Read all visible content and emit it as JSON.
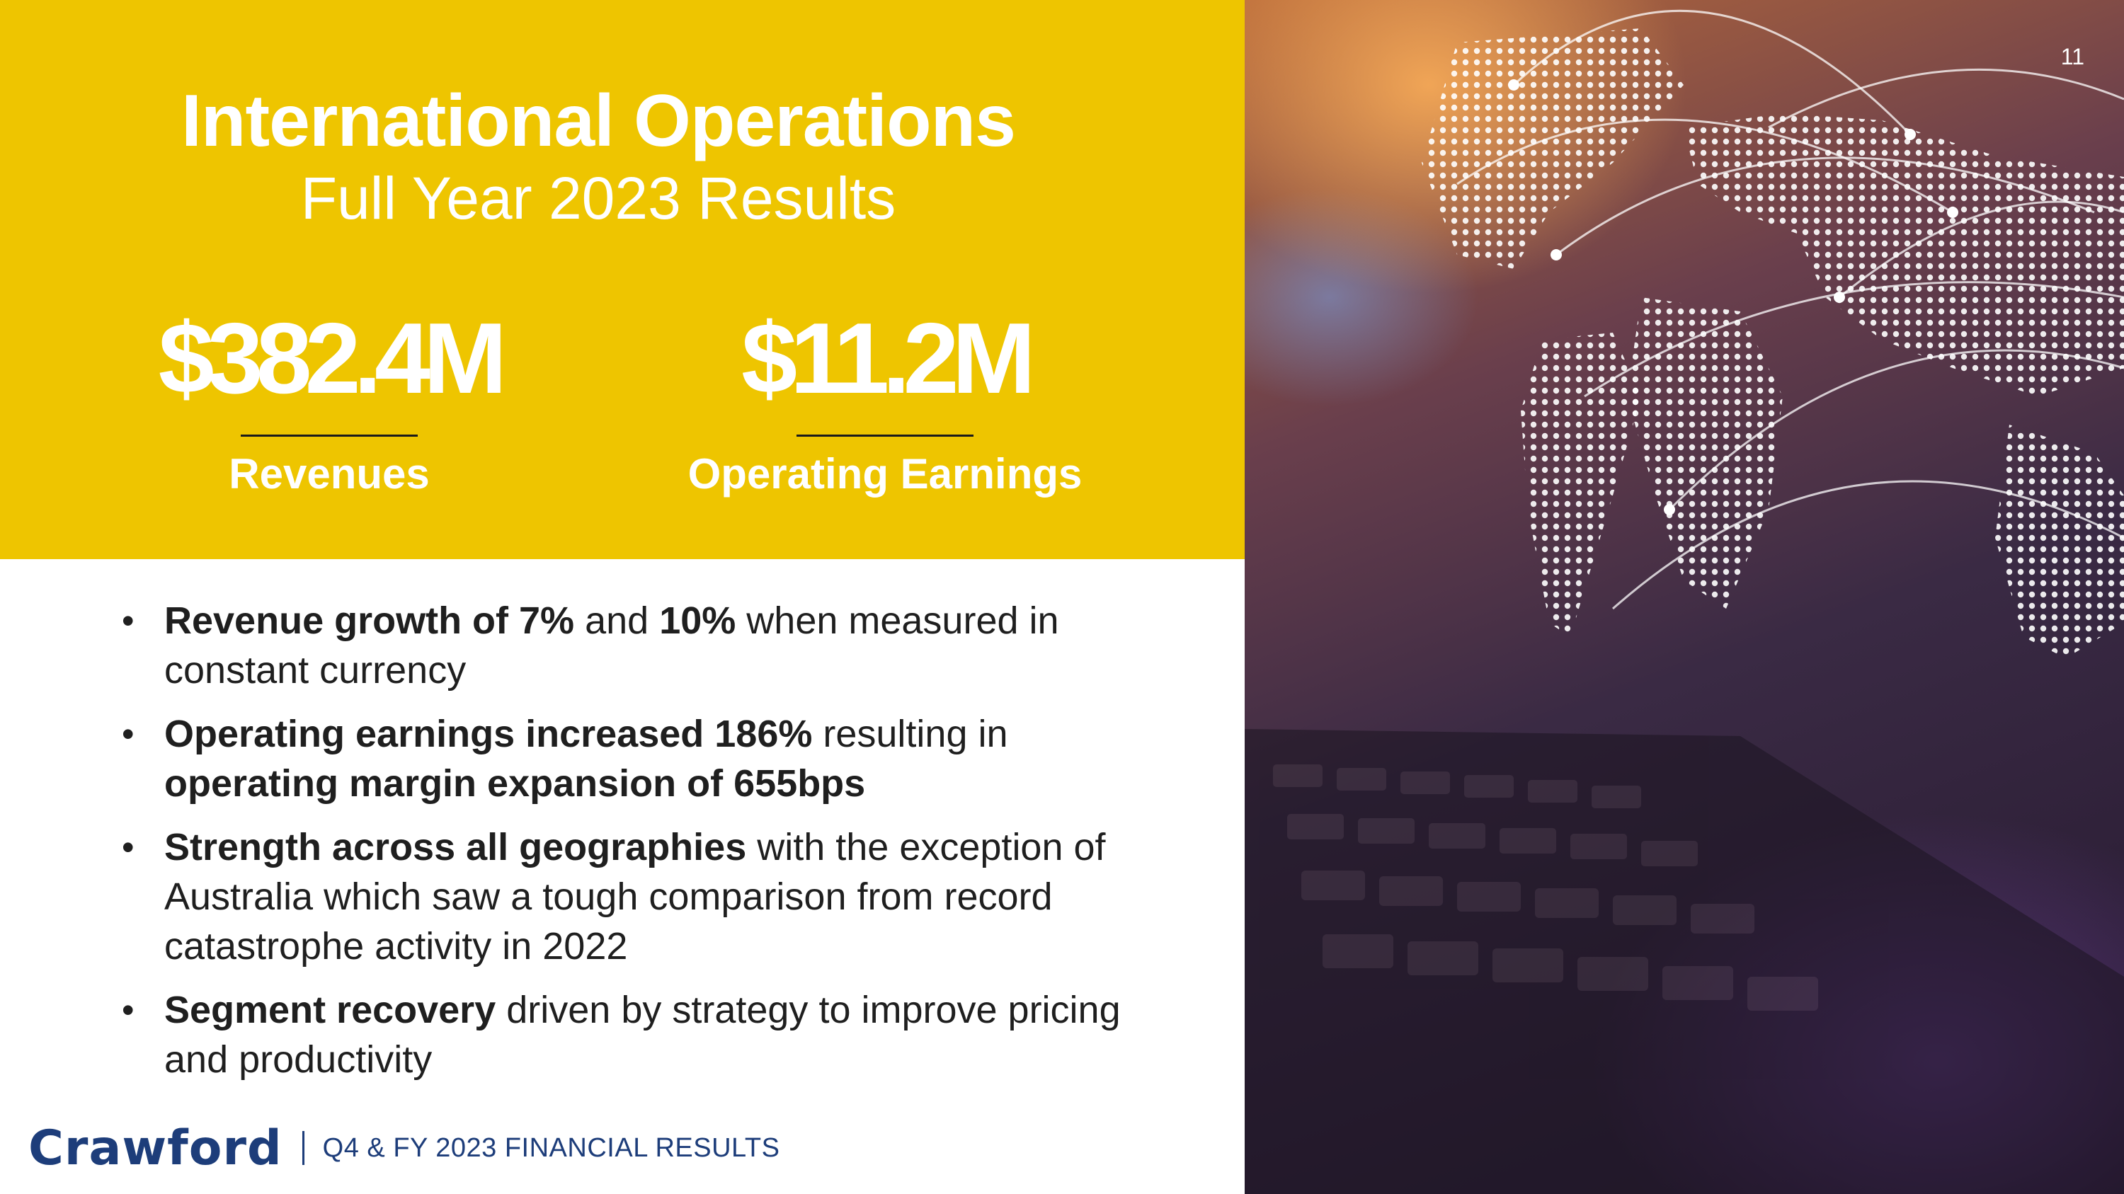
{
  "page_number": "11",
  "header": {
    "title": "International Operations",
    "subtitle": "Full Year 2023 Results"
  },
  "metrics": [
    {
      "value": "$382.4M",
      "label": "Revenues"
    },
    {
      "value": "$11.2M",
      "label": "Operating Earnings"
    }
  ],
  "bullets": [
    [
      {
        "text": "Revenue growth of 7%",
        "bold": true
      },
      {
        "text": " and ",
        "bold": false
      },
      {
        "text": "10%",
        "bold": true
      },
      {
        "text": " when measured in constant currency",
        "bold": false
      }
    ],
    [
      {
        "text": "Operating earnings increased 186%",
        "bold": true
      },
      {
        "text": " resulting in ",
        "bold": false
      },
      {
        "text": "operating margin expansion of 655bps",
        "bold": true
      }
    ],
    [
      {
        "text": "Strength across all geographies",
        "bold": true
      },
      {
        "text": " with the exception of Australia which saw a tough comparison from record catastrophe activity in 2022",
        "bold": false
      }
    ],
    [
      {
        "text": "Segment recovery",
        "bold": true
      },
      {
        "text": " driven by strategy to improve pricing and productivity",
        "bold": false
      }
    ]
  ],
  "footer": {
    "logo": "Crawford",
    "text": "Q4 & FY 2023 FINANCIAL RESULTS"
  },
  "colors": {
    "accent_yellow": "#EEC500",
    "brand_blue": "#1d3d7a"
  }
}
